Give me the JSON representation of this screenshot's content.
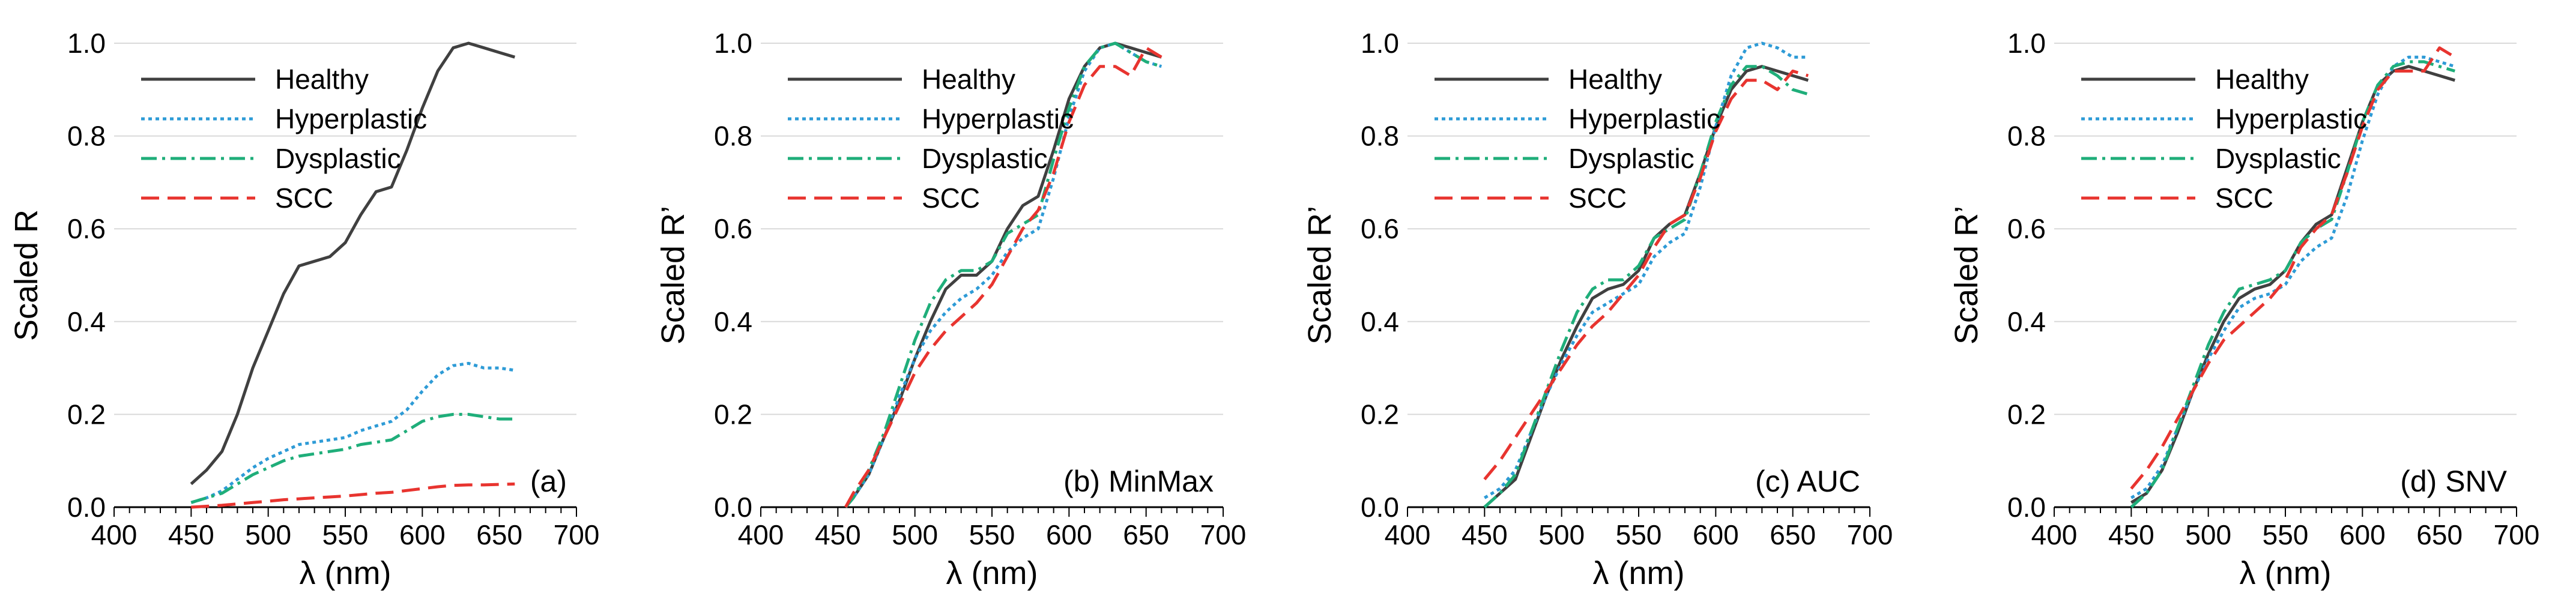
{
  "chart_data": [
    {
      "id": "a",
      "type": "line",
      "xlabel": "λ (nm)",
      "ylabel": "Scaled R",
      "xlim": [
        400,
        700
      ],
      "ylim": [
        0,
        1
      ],
      "xticks": [
        400,
        450,
        500,
        550,
        600,
        650,
        700
      ],
      "yticks": [
        0,
        0.2,
        0.4,
        0.6,
        0.8,
        1
      ],
      "annotation": "(a)",
      "legend": "top-left",
      "series": [
        {
          "name": "Healthy",
          "style": "solid",
          "color": "#404040",
          "x": [
            450,
            460,
            470,
            480,
            490,
            500,
            510,
            520,
            530,
            540,
            550,
            560,
            570,
            580,
            590,
            600,
            610,
            620,
            630,
            640,
            650,
            660
          ],
          "y": [
            0.05,
            0.08,
            0.12,
            0.2,
            0.3,
            0.38,
            0.46,
            0.52,
            0.53,
            0.54,
            0.57,
            0.63,
            0.68,
            0.69,
            0.77,
            0.86,
            0.94,
            0.99,
            1.0,
            0.99,
            0.98,
            0.97
          ]
        },
        {
          "name": "Hyperplastic",
          "style": "dotted",
          "color": "#2E9BD6",
          "x": [
            450,
            460,
            470,
            480,
            490,
            500,
            510,
            520,
            530,
            540,
            550,
            560,
            570,
            580,
            590,
            600,
            610,
            620,
            630,
            640,
            650,
            660
          ],
          "y": [
            0.01,
            0.02,
            0.035,
            0.06,
            0.085,
            0.105,
            0.12,
            0.135,
            0.14,
            0.145,
            0.15,
            0.165,
            0.175,
            0.185,
            0.21,
            0.25,
            0.285,
            0.305,
            0.31,
            0.3,
            0.3,
            0.295
          ]
        },
        {
          "name": "Dysplastic",
          "style": "dashdot",
          "color": "#1FAE7A",
          "x": [
            450,
            460,
            470,
            480,
            490,
            500,
            510,
            520,
            530,
            540,
            550,
            560,
            570,
            580,
            590,
            600,
            610,
            620,
            630,
            640,
            650,
            660
          ],
          "y": [
            0.01,
            0.02,
            0.03,
            0.05,
            0.07,
            0.085,
            0.1,
            0.11,
            0.115,
            0.12,
            0.125,
            0.135,
            0.14,
            0.145,
            0.165,
            0.185,
            0.195,
            0.2,
            0.2,
            0.195,
            0.19,
            0.19
          ]
        },
        {
          "name": "SCC",
          "style": "dashed",
          "color": "#E8342F",
          "x": [
            450,
            460,
            470,
            480,
            490,
            500,
            510,
            520,
            530,
            540,
            550,
            560,
            570,
            580,
            590,
            600,
            610,
            620,
            630,
            640,
            650,
            660
          ],
          "y": [
            0.0,
            0.002,
            0.004,
            0.007,
            0.01,
            0.013,
            0.016,
            0.018,
            0.02,
            0.022,
            0.024,
            0.027,
            0.03,
            0.032,
            0.036,
            0.04,
            0.044,
            0.047,
            0.048,
            0.048,
            0.049,
            0.05
          ]
        }
      ]
    },
    {
      "id": "b",
      "type": "line",
      "xlabel": "λ (nm)",
      "ylabel": "Scaled R’",
      "xlim": [
        400,
        700
      ],
      "ylim": [
        0,
        1
      ],
      "xticks": [
        400,
        450,
        500,
        550,
        600,
        650,
        700
      ],
      "yticks": [
        0,
        0.2,
        0.4,
        0.6,
        0.8,
        1
      ],
      "annotation": "(b) MinMax",
      "legend": "top-left",
      "series": [
        {
          "name": "Healthy",
          "style": "solid",
          "color": "#404040",
          "x": [
            455,
            460,
            470,
            480,
            490,
            500,
            510,
            520,
            530,
            540,
            550,
            560,
            570,
            580,
            590,
            600,
            610,
            620,
            630,
            640,
            650,
            660
          ],
          "y": [
            0.0,
            0.02,
            0.07,
            0.15,
            0.23,
            0.32,
            0.4,
            0.47,
            0.5,
            0.5,
            0.53,
            0.6,
            0.65,
            0.67,
            0.77,
            0.88,
            0.95,
            0.99,
            1.0,
            0.99,
            0.98,
            0.97
          ]
        },
        {
          "name": "Hyperplastic",
          "style": "dotted",
          "color": "#2E9BD6",
          "x": [
            455,
            460,
            470,
            480,
            490,
            500,
            510,
            520,
            530,
            540,
            550,
            560,
            570,
            580,
            590,
            600,
            610,
            620,
            630,
            640,
            650,
            660
          ],
          "y": [
            0.0,
            0.02,
            0.07,
            0.15,
            0.24,
            0.32,
            0.38,
            0.42,
            0.45,
            0.47,
            0.5,
            0.55,
            0.58,
            0.6,
            0.71,
            0.84,
            0.94,
            0.99,
            1.0,
            0.98,
            0.96,
            0.95
          ]
        },
        {
          "name": "Dysplastic",
          "style": "dashdot",
          "color": "#1FAE7A",
          "x": [
            455,
            460,
            470,
            480,
            490,
            500,
            510,
            520,
            530,
            540,
            550,
            560,
            570,
            580,
            590,
            600,
            610,
            620,
            630,
            640,
            650,
            660
          ],
          "y": [
            0.0,
            0.02,
            0.08,
            0.16,
            0.26,
            0.36,
            0.44,
            0.49,
            0.51,
            0.51,
            0.53,
            0.59,
            0.61,
            0.63,
            0.75,
            0.86,
            0.95,
            0.99,
            1.0,
            0.98,
            0.96,
            0.95
          ]
        },
        {
          "name": "SCC",
          "style": "dashed",
          "color": "#E8342F",
          "x": [
            455,
            460,
            470,
            480,
            490,
            500,
            510,
            520,
            530,
            540,
            550,
            560,
            570,
            580,
            590,
            600,
            610,
            620,
            630,
            640,
            650,
            660
          ],
          "y": [
            0.0,
            0.03,
            0.08,
            0.15,
            0.22,
            0.29,
            0.34,
            0.38,
            0.41,
            0.44,
            0.48,
            0.54,
            0.6,
            0.64,
            0.72,
            0.83,
            0.91,
            0.95,
            0.95,
            0.93,
            0.99,
            0.97
          ]
        }
      ]
    },
    {
      "id": "c",
      "type": "line",
      "xlabel": "λ (nm)",
      "ylabel": "Scaled R’",
      "xlim": [
        400,
        700
      ],
      "ylim": [
        0,
        1
      ],
      "xticks": [
        400,
        450,
        500,
        550,
        600,
        650,
        700
      ],
      "yticks": [
        0,
        0.2,
        0.4,
        0.6,
        0.8,
        1
      ],
      "annotation": "(c) AUC",
      "legend": "top-left",
      "series": [
        {
          "name": "Healthy",
          "style": "solid",
          "color": "#404040",
          "x": [
            450,
            460,
            470,
            480,
            490,
            500,
            510,
            520,
            530,
            540,
            550,
            560,
            570,
            580,
            590,
            600,
            610,
            620,
            630,
            640,
            650,
            660
          ],
          "y": [
            0.0,
            0.03,
            0.06,
            0.15,
            0.24,
            0.32,
            0.39,
            0.45,
            0.47,
            0.48,
            0.51,
            0.58,
            0.61,
            0.63,
            0.72,
            0.82,
            0.9,
            0.94,
            0.95,
            0.94,
            0.93,
            0.92
          ]
        },
        {
          "name": "Hyperplastic",
          "style": "dotted",
          "color": "#2E9BD6",
          "x": [
            450,
            460,
            470,
            480,
            490,
            500,
            510,
            520,
            530,
            540,
            550,
            560,
            570,
            580,
            590,
            600,
            610,
            620,
            630,
            640,
            650,
            660
          ],
          "y": [
            0.02,
            0.04,
            0.08,
            0.16,
            0.24,
            0.31,
            0.37,
            0.42,
            0.44,
            0.46,
            0.48,
            0.54,
            0.57,
            0.59,
            0.69,
            0.82,
            0.93,
            0.99,
            1.0,
            0.99,
            0.97,
            0.97
          ]
        },
        {
          "name": "Dysplastic",
          "style": "dashdot",
          "color": "#1FAE7A",
          "x": [
            450,
            460,
            470,
            480,
            490,
            500,
            510,
            520,
            530,
            540,
            550,
            560,
            570,
            580,
            590,
            600,
            610,
            620,
            630,
            640,
            650,
            660
          ],
          "y": [
            0.0,
            0.03,
            0.07,
            0.16,
            0.25,
            0.34,
            0.42,
            0.47,
            0.49,
            0.49,
            0.52,
            0.58,
            0.6,
            0.62,
            0.72,
            0.83,
            0.91,
            0.95,
            0.95,
            0.93,
            0.9,
            0.89
          ]
        },
        {
          "name": "SCC",
          "style": "dashed",
          "color": "#E8342F",
          "x": [
            450,
            460,
            470,
            480,
            490,
            500,
            510,
            520,
            530,
            540,
            550,
            560,
            570,
            580,
            590,
            600,
            610,
            620,
            630,
            640,
            650,
            660
          ],
          "y": [
            0.06,
            0.1,
            0.15,
            0.2,
            0.25,
            0.3,
            0.35,
            0.39,
            0.42,
            0.46,
            0.5,
            0.56,
            0.61,
            0.63,
            0.71,
            0.81,
            0.88,
            0.92,
            0.92,
            0.9,
            0.94,
            0.93
          ]
        }
      ]
    },
    {
      "id": "d",
      "type": "line",
      "xlabel": "λ (nm)",
      "ylabel": "Scaled R’",
      "xlim": [
        400,
        700
      ],
      "ylim": [
        0,
        1
      ],
      "xticks": [
        400,
        450,
        500,
        550,
        600,
        650,
        700
      ],
      "yticks": [
        0,
        0.2,
        0.4,
        0.6,
        0.8,
        1
      ],
      "annotation": "(d) SNV",
      "legend": "top-left",
      "series": [
        {
          "name": "Healthy",
          "style": "solid",
          "color": "#404040",
          "x": [
            450,
            460,
            470,
            480,
            490,
            500,
            510,
            520,
            530,
            540,
            550,
            560,
            570,
            580,
            590,
            600,
            610,
            620,
            630,
            640,
            650,
            660
          ],
          "y": [
            0.01,
            0.03,
            0.08,
            0.16,
            0.25,
            0.33,
            0.4,
            0.45,
            0.47,
            0.48,
            0.51,
            0.57,
            0.61,
            0.63,
            0.73,
            0.83,
            0.91,
            0.94,
            0.95,
            0.94,
            0.93,
            0.92
          ]
        },
        {
          "name": "Hyperplastic",
          "style": "dotted",
          "color": "#2E9BD6",
          "x": [
            450,
            460,
            470,
            480,
            490,
            500,
            510,
            520,
            530,
            540,
            550,
            560,
            570,
            580,
            590,
            600,
            610,
            620,
            630,
            640,
            650,
            660
          ],
          "y": [
            0.02,
            0.04,
            0.09,
            0.17,
            0.25,
            0.32,
            0.38,
            0.43,
            0.45,
            0.46,
            0.48,
            0.53,
            0.56,
            0.58,
            0.67,
            0.79,
            0.89,
            0.95,
            0.97,
            0.97,
            0.96,
            0.95
          ]
        },
        {
          "name": "Dysplastic",
          "style": "dashdot",
          "color": "#1FAE7A",
          "x": [
            450,
            460,
            470,
            480,
            490,
            500,
            510,
            520,
            530,
            540,
            550,
            560,
            570,
            580,
            590,
            600,
            610,
            620,
            630,
            640,
            650,
            660
          ],
          "y": [
            0.0,
            0.03,
            0.08,
            0.17,
            0.26,
            0.35,
            0.42,
            0.47,
            0.48,
            0.49,
            0.51,
            0.57,
            0.6,
            0.62,
            0.72,
            0.83,
            0.91,
            0.95,
            0.96,
            0.96,
            0.95,
            0.94
          ]
        },
        {
          "name": "SCC",
          "style": "dashed",
          "color": "#E8342F",
          "x": [
            450,
            460,
            470,
            480,
            490,
            500,
            510,
            520,
            530,
            540,
            550,
            560,
            570,
            580,
            590,
            600,
            610,
            620,
            630,
            640,
            650,
            660
          ],
          "y": [
            0.04,
            0.08,
            0.13,
            0.19,
            0.25,
            0.31,
            0.36,
            0.39,
            0.42,
            0.45,
            0.49,
            0.56,
            0.6,
            0.63,
            0.72,
            0.82,
            0.9,
            0.94,
            0.94,
            0.94,
            0.99,
            0.97
          ]
        }
      ]
    }
  ]
}
